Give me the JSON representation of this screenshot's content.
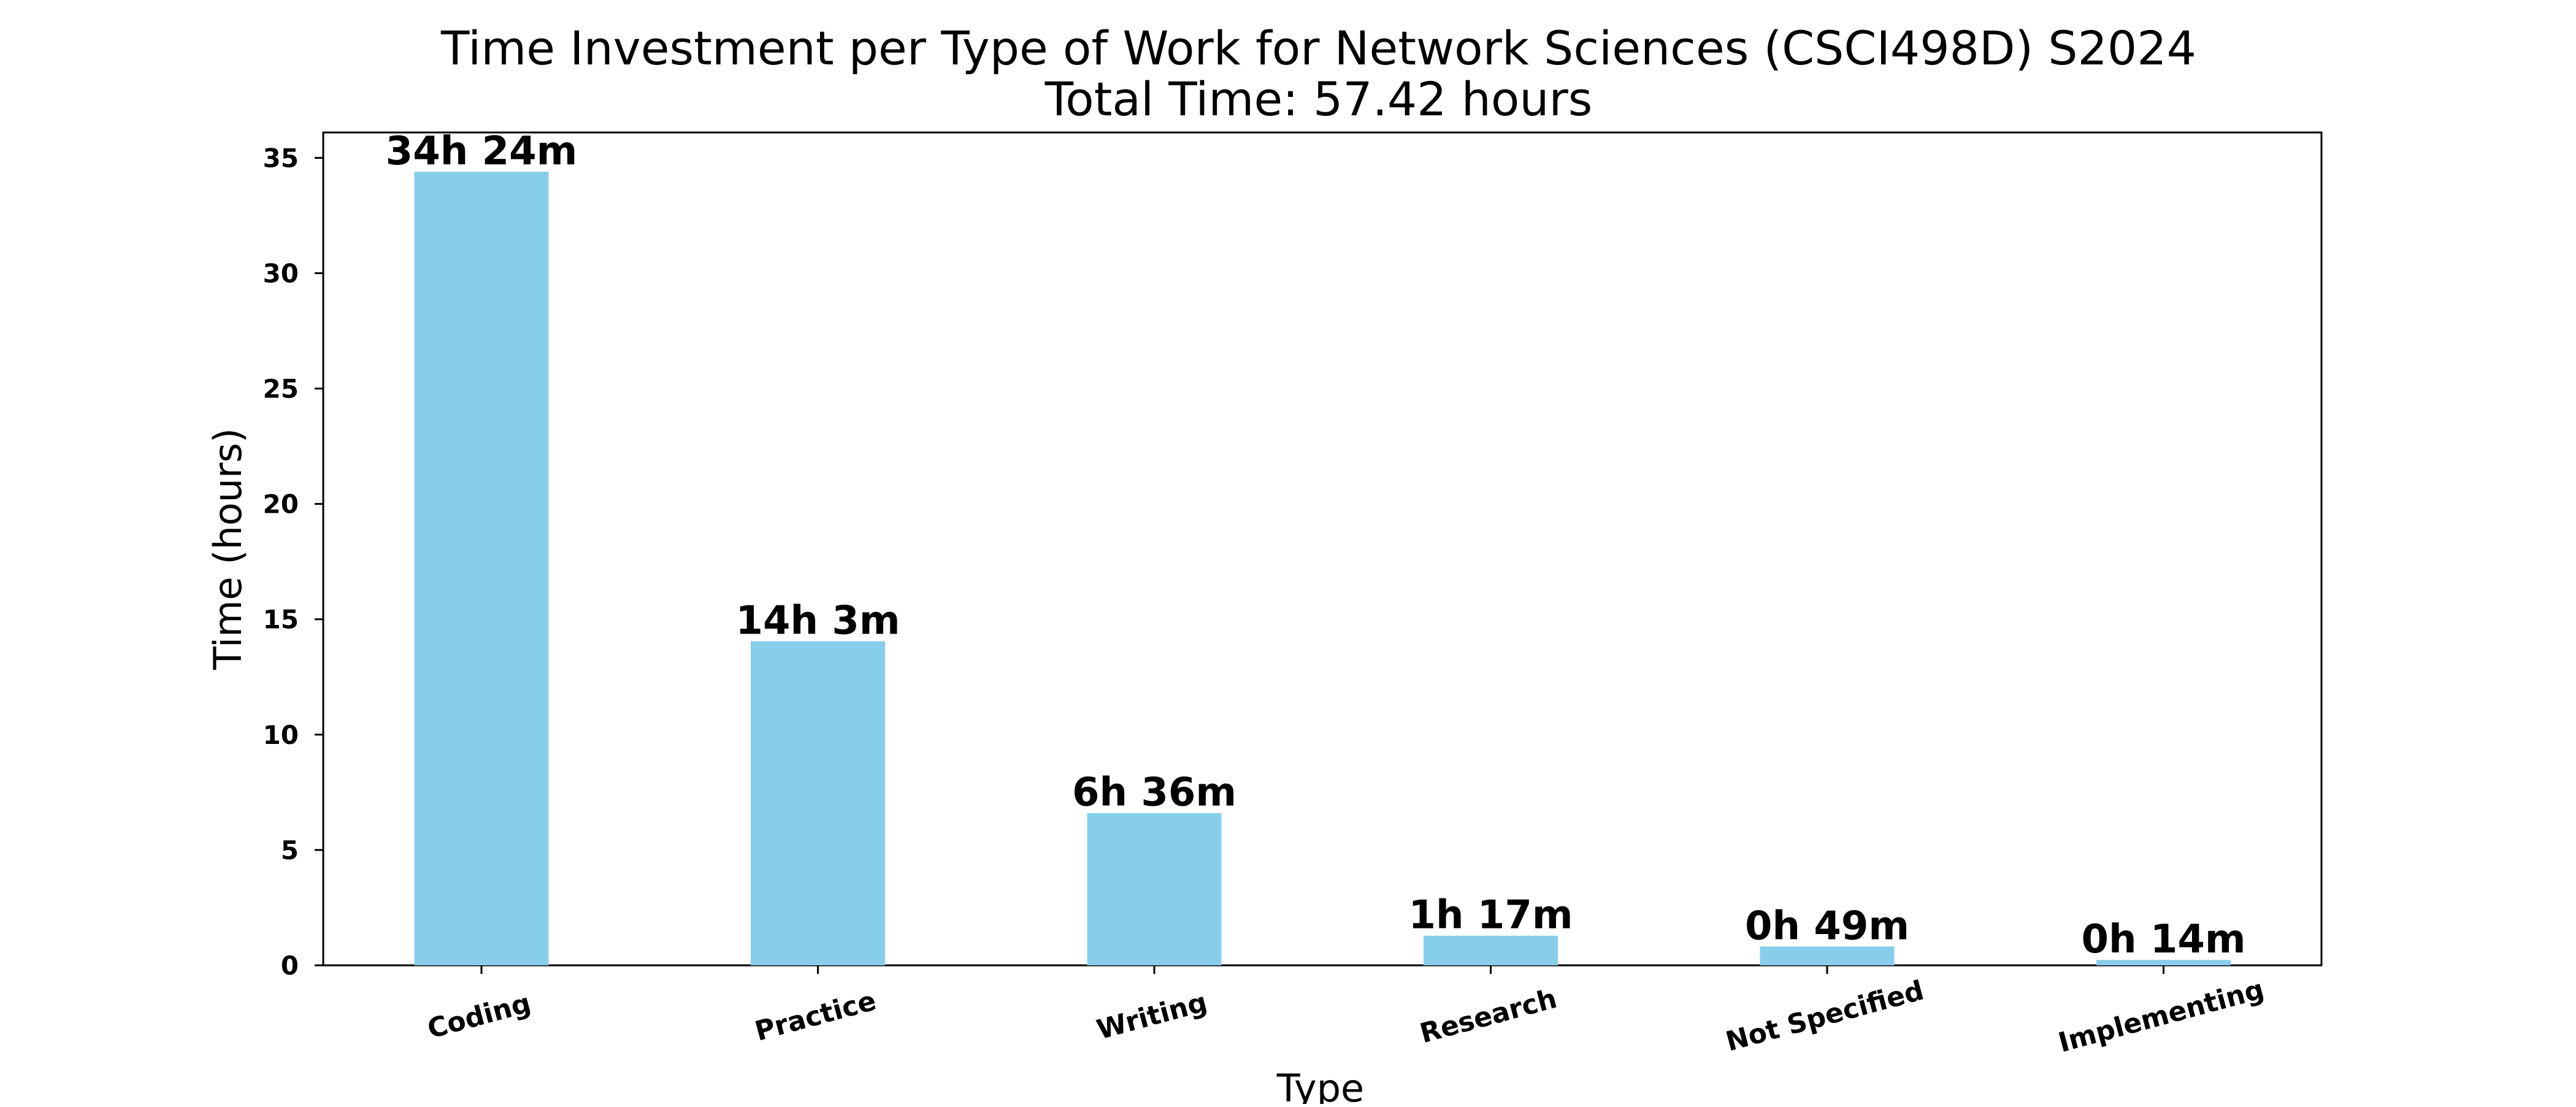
{
  "chart_data": {
    "type": "bar",
    "title": "Time Investment per Type of Work for Network Sciences (CSCI498D) S2024",
    "subtitle": "Total Time: 57.42 hours",
    "xlabel": "Type",
    "ylabel": "Time (hours)",
    "categories": [
      "Coding",
      "Practice",
      "Writing",
      "Research",
      "Not Specified",
      "Implementing"
    ],
    "values": [
      34.4,
      14.05,
      6.6,
      1.283,
      0.817,
      0.233
    ],
    "data_labels": [
      "34h 24m",
      "14h 3m",
      "6h 36m",
      "1h 17m",
      "0h 49m",
      "0h 14m"
    ],
    "ylim": [
      0,
      36.1
    ],
    "yticks": [
      0,
      5,
      10,
      15,
      20,
      25,
      30,
      35
    ],
    "bar_color": "#87ceeb",
    "grid": false,
    "legend": "none"
  }
}
